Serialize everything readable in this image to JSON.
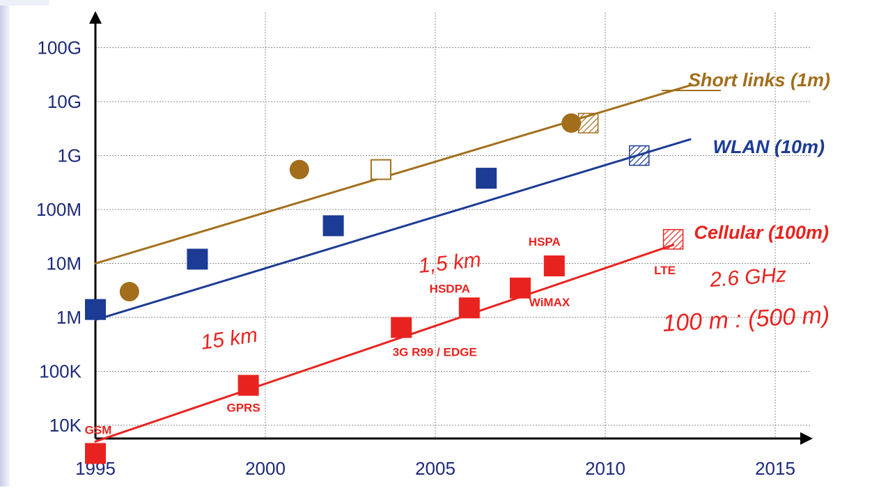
{
  "chart_data": {
    "type": "scatter",
    "title": "",
    "xlabel": "",
    "ylabel": "",
    "x_ticks": [
      "1995",
      "2000",
      "2005",
      "2010",
      "2015"
    ],
    "y_ticks": [
      "10K",
      "100K",
      "1M",
      "10M",
      "100M",
      "1G",
      "10G",
      "100G"
    ],
    "x_scale": "linear",
    "y_scale": "log",
    "xlim": [
      1995,
      2016
    ],
    "ylim": [
      1000,
      500000000000
    ],
    "grid": true,
    "colors": {
      "short": "#a26e1c",
      "wlan": "#1b3b94",
      "cellular": "#e8231f",
      "annotation": "#e8231f"
    },
    "series": [
      {
        "name": "Short links (1m)",
        "line": [
          [
            1995,
            10000000
          ],
          [
            2012.5,
            20000000000
          ]
        ],
        "points": [
          {
            "x": 1996,
            "y": 3000000,
            "marker": "circle"
          },
          {
            "x": 2001,
            "y": 550000000,
            "marker": "circle"
          },
          {
            "x": 2003.4,
            "y": 550000000,
            "marker": "open-square"
          },
          {
            "x": 2009,
            "y": 4000000000,
            "marker": "circle"
          },
          {
            "x": 2009.5,
            "y": 4000000000,
            "marker": "hatched-square"
          }
        ]
      },
      {
        "name": "WLAN (10m)",
        "line": [
          [
            1995,
            900000
          ],
          [
            2012.5,
            2000000000
          ]
        ],
        "points": [
          {
            "x": 1995,
            "y": 1400000,
            "marker": "square"
          },
          {
            "x": 1998,
            "y": 12000000,
            "marker": "square"
          },
          {
            "x": 2002,
            "y": 50000000,
            "marker": "square"
          },
          {
            "x": 2006.5,
            "y": 380000000,
            "marker": "square"
          },
          {
            "x": 2011,
            "y": 1000000000,
            "marker": "hatched-square"
          }
        ]
      },
      {
        "name": "Cellular (100m)",
        "line": [
          [
            1995,
            5000
          ],
          [
            2012,
            22000000
          ]
        ],
        "points": [
          {
            "x": 1995,
            "y": 3000,
            "marker": "square",
            "label": "GSM"
          },
          {
            "x": 1999.5,
            "y": 55000,
            "marker": "square",
            "label": "GPRS"
          },
          {
            "x": 2004,
            "y": 650000,
            "marker": "square",
            "label": "3G R99 / EDGE"
          },
          {
            "x": 2006,
            "y": 1500000,
            "marker": "square",
            "label": "HSDPA"
          },
          {
            "x": 2007.5,
            "y": 3500000,
            "marker": "square",
            "label": "WiMAX"
          },
          {
            "x": 2008.5,
            "y": 9000000,
            "marker": "square",
            "label": "HSPA"
          },
          {
            "x": 2012,
            "y": 28000000,
            "marker": "hatched-square",
            "label": "LTE"
          }
        ]
      }
    ],
    "handwritten_notes": [
      "1,5 km",
      "15 km",
      "2.6 GHz",
      "100 m : (500 m)"
    ]
  }
}
